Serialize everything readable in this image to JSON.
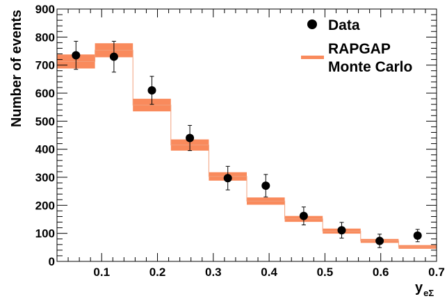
{
  "chart_data": {
    "type": "bar",
    "title": "",
    "ylabel": "Number of events",
    "xlabel": {
      "main": "y",
      "subscript": "eΣ"
    },
    "xlim": [
      0.02,
      0.7
    ],
    "ylim": [
      0,
      900
    ],
    "x_ticks": [
      0.1,
      0.2,
      0.3,
      0.4,
      0.5,
      0.6,
      0.7
    ],
    "x_tick_labels": [
      "0.1",
      "0.2",
      "0.3",
      "0.4",
      "0.5",
      "0.6",
      "0.7"
    ],
    "y_ticks": [
      0,
      100,
      200,
      300,
      400,
      500,
      600,
      700,
      800,
      900
    ],
    "y_tick_labels": [
      "0",
      "100",
      "200",
      "300",
      "400",
      "500",
      "600",
      "700",
      "800",
      "900"
    ],
    "grid": false,
    "legend_position": "top-right",
    "bin_edges": [
      0.02,
      0.088,
      0.156,
      0.224,
      0.292,
      0.36,
      0.428,
      0.496,
      0.564,
      0.632,
      0.7
    ],
    "series": [
      {
        "name": "Data",
        "kind": "points-with-errors",
        "color": "#000000",
        "x": [
          0.054,
          0.122,
          0.19,
          0.258,
          0.326,
          0.394,
          0.462,
          0.53,
          0.598,
          0.666
        ],
        "y": [
          735,
          730,
          610,
          440,
          297,
          270,
          162,
          111,
          73,
          92
        ],
        "yerr": [
          50,
          55,
          50,
          45,
          42,
          40,
          32,
          28,
          24,
          22
        ]
      },
      {
        "name": [
          "RAPGAP",
          "Monte Carlo"
        ],
        "kind": "band-histogram",
        "color": "#f98a5c",
        "low": [
          688,
          728,
          535,
          395,
          288,
          202,
          141,
          99,
          66,
          45
        ],
        "high": [
          738,
          778,
          580,
          435,
          318,
          228,
          162,
          117,
          80,
          58
        ]
      }
    ]
  }
}
